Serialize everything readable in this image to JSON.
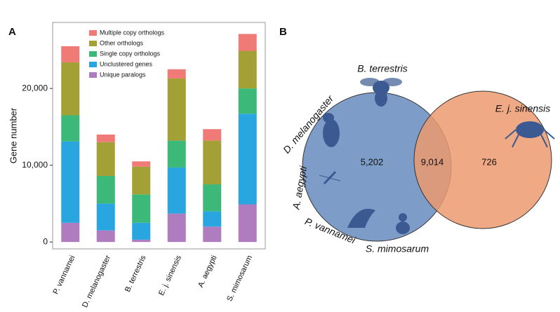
{
  "chart_data": [
    {
      "type": "bar",
      "panel": "A",
      "stacked": true,
      "ylabel": "Gene number",
      "categories": [
        "P. vannamei",
        "D. melanogaster",
        "B. terrestris",
        "E. j. sinensis",
        "A. aegypti",
        "S. mimosarum"
      ],
      "series": [
        {
          "name": "Unique paralogs",
          "color": "#b07cc0",
          "values": [
            2500,
            1500,
            300,
            3700,
            2000,
            4900
          ]
        },
        {
          "name": "Unclustered genes",
          "color": "#29a6e0",
          "values": [
            10600,
            3500,
            2200,
            6000,
            2000,
            11800
          ]
        },
        {
          "name": "Single copy orthologs",
          "color": "#3cb878",
          "values": [
            3400,
            3600,
            3700,
            3500,
            3500,
            3300
          ]
        },
        {
          "name": "Other orthologs",
          "color": "#a3a035",
          "values": [
            6900,
            4400,
            3600,
            8100,
            5700,
            4900
          ]
        },
        {
          "name": "Multiple copy orthologs",
          "color": "#f07b76",
          "values": [
            2100,
            1000,
            700,
            1200,
            1500,
            2200
          ]
        }
      ],
      "ylim": [
        -900,
        28600
      ],
      "yticks": [
        0,
        {
          "value": 10000,
          "label": "10,000"
        },
        {
          "value": 20000,
          "label": "20,000"
        }
      ],
      "legend": "upper left"
    },
    {
      "type": "venn",
      "panel": "B",
      "left_labels": [
        "B. terrestris",
        "D. melanogaster",
        "A. aegypti",
        "P. vannamei",
        "S. mimosarum"
      ],
      "right_labels": [
        "E. j. sinensis"
      ],
      "left_color": "#7e9cc8",
      "right_color": "#ec9a6e",
      "values": [
        5202,
        9014,
        726
      ],
      "value_labels": [
        "5,202",
        "9,014",
        "726"
      ]
    }
  ]
}
